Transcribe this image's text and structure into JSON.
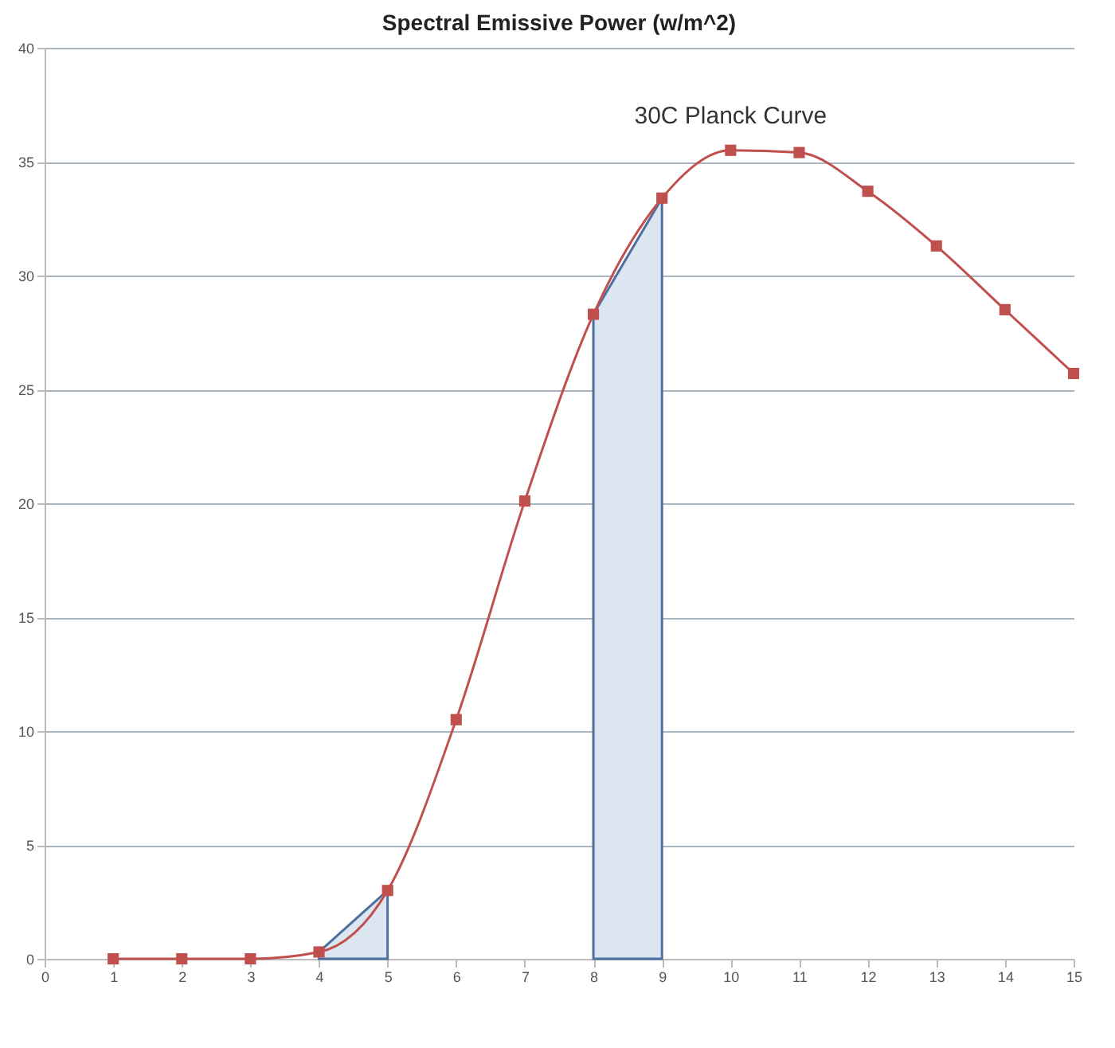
{
  "chart_data": {
    "type": "line",
    "title": "Spectral Emissive Power (w/m^2)",
    "xlim": [
      0,
      15
    ],
    "xticks": [
      0,
      1,
      2,
      3,
      4,
      5,
      6,
      7,
      8,
      9,
      10,
      11,
      12,
      13,
      14,
      15
    ],
    "ylim": [
      0,
      40
    ],
    "yticks": [
      0,
      5,
      10,
      15,
      20,
      25,
      30,
      35,
      40
    ],
    "grid": "y",
    "series": [
      {
        "type": "area",
        "color": "#dce6f1",
        "x": [
          4,
          5
        ],
        "values": [
          0.3,
          3.0
        ]
      },
      {
        "type": "area",
        "color": "#dce6f1",
        "x": [
          8,
          9
        ],
        "values": [
          28.3,
          33.4
        ]
      },
      {
        "name": "30C Planck Curve",
        "color": "#c0504d",
        "marker": "square",
        "x": [
          1,
          2,
          3,
          4,
          5,
          6,
          7,
          8,
          9,
          10,
          11,
          12,
          13,
          14,
          15
        ],
        "values": [
          0,
          0,
          0,
          0.3,
          3.0,
          10.5,
          20.1,
          28.3,
          33.4,
          35.5,
          35.4,
          33.7,
          31.3,
          28.5,
          25.7
        ]
      }
    ]
  }
}
